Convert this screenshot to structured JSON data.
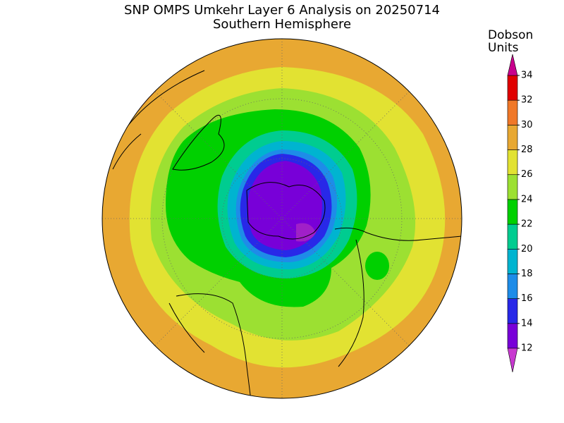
{
  "title": "SNP OMPS Umkehr Layer 6 Analysis on 20250714",
  "subtitle": "Southern Hemisphere",
  "colorbar": {
    "label_lines": [
      "Dobson",
      "Units"
    ],
    "ticks": [
      12,
      14,
      16,
      18,
      20,
      22,
      24,
      26,
      28,
      30,
      32,
      34
    ],
    "colors": [
      "#7800d8",
      "#2828e8",
      "#1e8ce8",
      "#00b4d0",
      "#00cc90",
      "#00d000",
      "#9ce032",
      "#e2e232",
      "#e8a832",
      "#f07828",
      "#e00000"
    ],
    "under_color": "#c838d0",
    "over_color": "#c8008c"
  }
}
